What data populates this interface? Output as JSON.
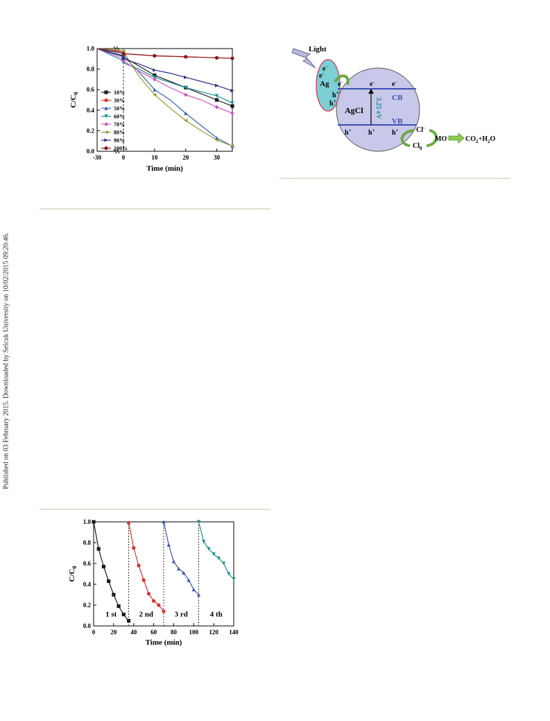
{
  "sidebar": {
    "text": "Published on 03 February 2015. Downloaded by Selcuk University on 10/02/2015 09:20:46."
  },
  "fig_kinetics": {
    "chart_data": {
      "type": "line",
      "xlabel": "Time (min)",
      "ylabel": "C/C",
      "ylabel_sub": "0",
      "xticks": [
        "-30",
        "0",
        "10",
        "20",
        "30"
      ],
      "yticks": [
        "0.0",
        "0.2",
        "0.4",
        "0.6",
        "0.8",
        "1.0"
      ],
      "ylim": [
        0,
        1.0
      ],
      "legend_position": "left",
      "x": [
        0,
        5,
        10,
        15,
        20,
        25,
        30,
        35
      ],
      "series": [
        {
          "name": "10%",
          "color": "#1a1a1a",
          "marker": "square",
          "dark_value": 0.93,
          "values": [
            0.92,
            0.83,
            0.74,
            0.68,
            0.62,
            0.56,
            0.5,
            0.44
          ]
        },
        {
          "name": "30%",
          "color": "#e03030",
          "marker": "circle",
          "dark_value": 0.97,
          "values": [
            0.95,
            0.94,
            0.93,
            0.925,
            0.92,
            0.915,
            0.91,
            0.905
          ]
        },
        {
          "name": "50%",
          "color": "#3a5fc0",
          "marker": "triangle",
          "dark_value": 0.95,
          "values": [
            0.93,
            0.77,
            0.6,
            0.5,
            0.37,
            0.25,
            0.13,
            0.05
          ]
        },
        {
          "name": "60%",
          "color": "#1a9090",
          "marker": "triangle-down",
          "dark_value": 0.88,
          "values": [
            0.86,
            0.8,
            0.72,
            0.67,
            0.62,
            0.58,
            0.54,
            0.47
          ]
        },
        {
          "name": "70%",
          "color": "#d050c0",
          "marker": "diamond",
          "dark_value": 0.9,
          "values": [
            0.88,
            0.78,
            0.7,
            0.62,
            0.55,
            0.5,
            0.43,
            0.37
          ]
        },
        {
          "name": "80%",
          "color": "#909a30",
          "marker": "triangle-left",
          "dark_value": 0.98,
          "values": [
            0.97,
            0.73,
            0.55,
            0.42,
            0.3,
            0.2,
            0.11,
            0.05
          ]
        },
        {
          "name": "90%",
          "color": "#2a2a8a",
          "marker": "triangle-right",
          "dark_value": 0.92,
          "values": [
            0.9,
            0.85,
            0.79,
            0.76,
            0.72,
            0.68,
            0.64,
            0.59
          ]
        },
        {
          "name": "100%",
          "color": "#8b1a1a",
          "marker": "hexagon",
          "dark_value": 0.96,
          "values": [
            0.95,
            0.94,
            0.93,
            0.925,
            0.92,
            0.915,
            0.91,
            0.905
          ]
        }
      ]
    }
  },
  "fig_mechanism": {
    "labels": {
      "light": "Light",
      "ag": "Ag",
      "agcl": "AgCl",
      "cb": "CB",
      "vb": "VB",
      "bandgap": "3.25 eV",
      "electron": "e",
      "electron_sup": "-",
      "hole": "h",
      "hole_sup": "+",
      "cl_minus": "Cl",
      "cl_minus_sup": "-",
      "cl0": "Cl",
      "cl0_sub": "0",
      "mo": "MO",
      "products": "CO",
      "products_sub": "2",
      "products_tail": "+H",
      "products_sub2": "2",
      "products_end": "O"
    }
  },
  "fig_cycles": {
    "chart_data": {
      "type": "line",
      "xlabel": "Time (min)",
      "ylabel": "C/C",
      "ylabel_sub": "0",
      "xlim": [
        0,
        140
      ],
      "ylim": [
        0,
        1.0
      ],
      "xticks": [
        "0",
        "20",
        "40",
        "60",
        "80",
        "100",
        "120",
        "140"
      ],
      "yticks": [
        "0.0",
        "0.2",
        "0.4",
        "0.6",
        "0.8",
        "1.0"
      ],
      "separators": [
        35,
        70,
        105
      ],
      "series": [
        {
          "name": "1 st",
          "color": "#1a1a1a",
          "marker": "square",
          "x": [
            0,
            5,
            10,
            15,
            20,
            25,
            30,
            35
          ],
          "values": [
            1.0,
            0.74,
            0.57,
            0.43,
            0.3,
            0.19,
            0.11,
            0.05
          ]
        },
        {
          "name": "2 nd",
          "color": "#e03030",
          "marker": "circle",
          "x": [
            35,
            40,
            45,
            50,
            55,
            60,
            65,
            70
          ],
          "values": [
            0.99,
            0.75,
            0.58,
            0.44,
            0.31,
            0.24,
            0.2,
            0.14
          ]
        },
        {
          "name": "3 rd",
          "color": "#3a4fb0",
          "marker": "triangle",
          "x": [
            70,
            75,
            80,
            85,
            90,
            95,
            100,
            105
          ],
          "values": [
            1.0,
            0.78,
            0.62,
            0.55,
            0.51,
            0.44,
            0.35,
            0.3
          ]
        },
        {
          "name": "4 th",
          "color": "#1a9090",
          "marker": "triangle-down",
          "x": [
            105,
            110,
            115,
            120,
            125,
            130,
            135,
            140
          ],
          "values": [
            1.0,
            0.81,
            0.74,
            0.69,
            0.65,
            0.6,
            0.5,
            0.45
          ]
        }
      ]
    }
  }
}
